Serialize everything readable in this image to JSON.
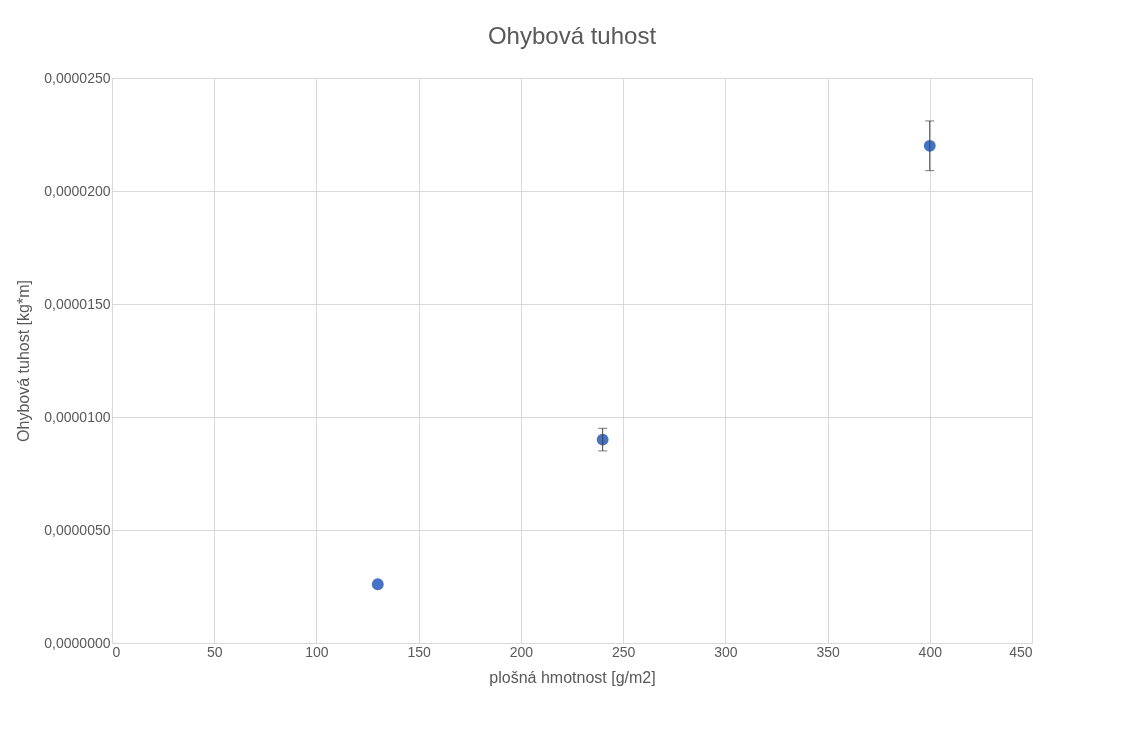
{
  "chart_data": {
    "type": "scatter",
    "title": "Ohybová tuhost",
    "xlabel": "plošná hmotnost [g/m2]",
    "ylabel": "Ohybová tuhost [kg*m]",
    "x": [
      130,
      240,
      400
    ],
    "series": [
      {
        "color": "#4472c4",
        "values": [
          2.6e-06,
          9e-06,
          2.2e-05
        ],
        "errors": [
          null,
          5e-07,
          1.1e-06
        ]
      }
    ],
    "xlim": [
      0,
      450
    ],
    "xticks": [
      0,
      50,
      100,
      150,
      200,
      250,
      300,
      350,
      400,
      450
    ],
    "ylim": [
      0,
      2.5e-05
    ],
    "yticks": [
      {
        "value": 0,
        "label": "0,0000000"
      },
      {
        "value": 5e-06,
        "label": "0,0000050"
      },
      {
        "value": 1e-05,
        "label": "0,0000100"
      },
      {
        "value": 1.5e-05,
        "label": "0,0000150"
      },
      {
        "value": 2e-05,
        "label": "0,0000200"
      },
      {
        "value": 2.5e-05,
        "label": "0,0000250"
      }
    ],
    "grid": true,
    "marker": "circle"
  }
}
